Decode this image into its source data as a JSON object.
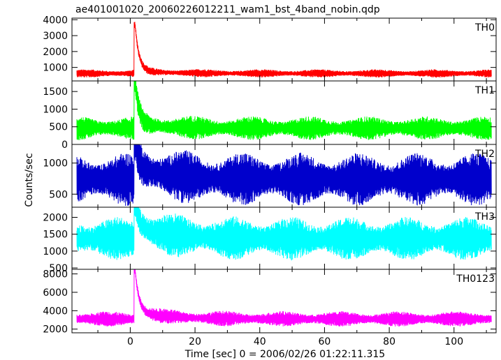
{
  "chart_data": {
    "type": "line",
    "title": "ae401001020_20060226012211_wam1_bst_4band_nobin.qdp",
    "xlabel": "Time [sec] 0 = 2006/02/26 01:22:11.315",
    "ylabel": "Counts/sec",
    "xlim": [
      -18,
      113
    ],
    "xticks": [
      0,
      20,
      40,
      60,
      80,
      100
    ],
    "grid": false,
    "panels": [
      {
        "name": "TH0",
        "color": "#ff0000",
        "ylim": [
          150,
          4100
        ],
        "yticks": [
          1000,
          2000,
          3000,
          4000
        ],
        "baseline": 620,
        "noise": 200,
        "peak": 4000,
        "peak_time": 1.5,
        "series_start": -16.5,
        "series_end": 111.5
      },
      {
        "name": "TH1",
        "color": "#00ff00",
        "ylim": [
          0,
          1800
        ],
        "yticks": [
          0,
          500,
          1000,
          1500
        ],
        "baseline": 460,
        "noise": 260,
        "peak": 1900,
        "peak_time": 1.5,
        "series_start": -16.5,
        "series_end": 111.5
      },
      {
        "name": "TH2",
        "color": "#0000cc",
        "ylim": [
          290,
          1300
        ],
        "yticks": [
          500,
          1000
        ],
        "baseline": 740,
        "noise": 330,
        "peak": 1250,
        "peak_time": 1.5,
        "series_start": -16.5,
        "series_end": 111.5
      },
      {
        "name": "TH3",
        "color": "#00ffff",
        "ylim": [
          460,
          2300
        ],
        "yticks": [
          500,
          1000,
          1500,
          2000
        ],
        "baseline": 1370,
        "noise": 500,
        "peak": 2250,
        "peak_time": 1.5,
        "series_start": -16.5,
        "series_end": 111.5
      },
      {
        "name": "TH0123",
        "color": "#ff00ff",
        "ylim": [
          1600,
          8500
        ],
        "yticks": [
          2000,
          4000,
          6000,
          8000
        ],
        "baseline": 3100,
        "noise": 650,
        "peak": 8400,
        "peak_time": 1.5,
        "series_start": -16.5,
        "series_end": 111.5
      }
    ]
  }
}
